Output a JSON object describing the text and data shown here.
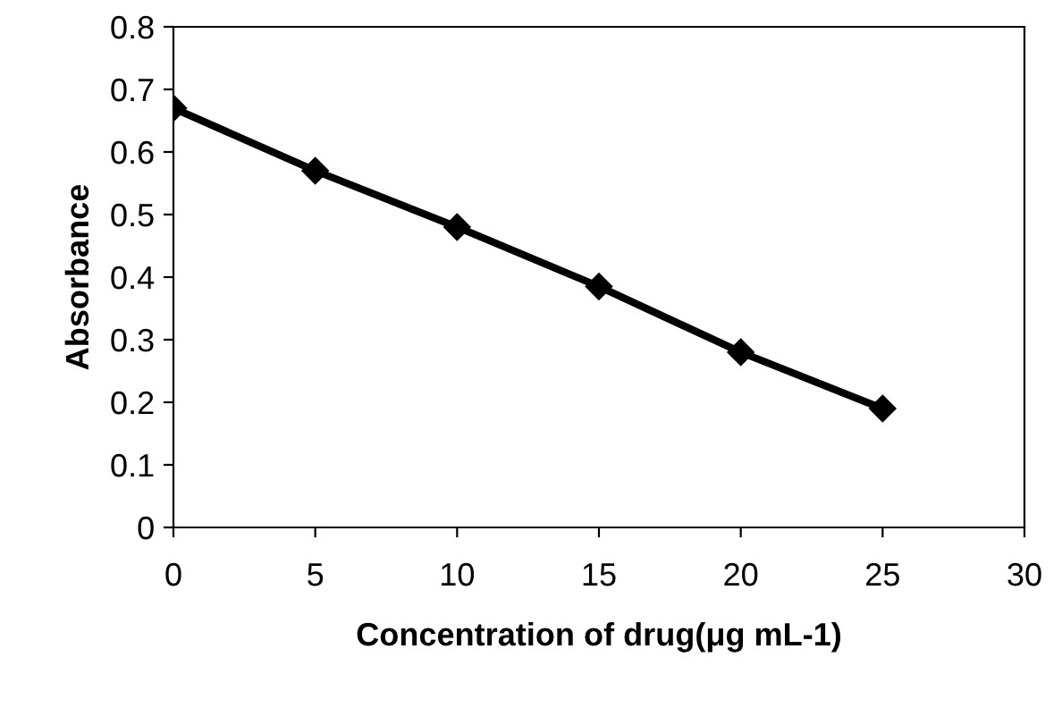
{
  "chart_data": {
    "type": "line",
    "xlabel": "Concentration of drug(μg mL-1)",
    "ylabel": "Absorbance",
    "x": [
      0,
      5,
      10,
      15,
      20,
      25
    ],
    "series": [
      {
        "color": "#000000",
        "values": [
          0.67,
          0.57,
          0.48,
          0.385,
          0.28,
          0.19
        ]
      }
    ],
    "xlim": [
      0,
      30
    ],
    "xticks": [
      0,
      5,
      10,
      15,
      20,
      25,
      30
    ],
    "ylim": [
      0,
      0.8
    ],
    "yticks": [
      0,
      0.1,
      0.2,
      0.3,
      0.4,
      0.5,
      0.6,
      0.7,
      0.8
    ],
    "marker": "diamond",
    "line_style": "solid",
    "grid": false,
    "legend": false
  }
}
